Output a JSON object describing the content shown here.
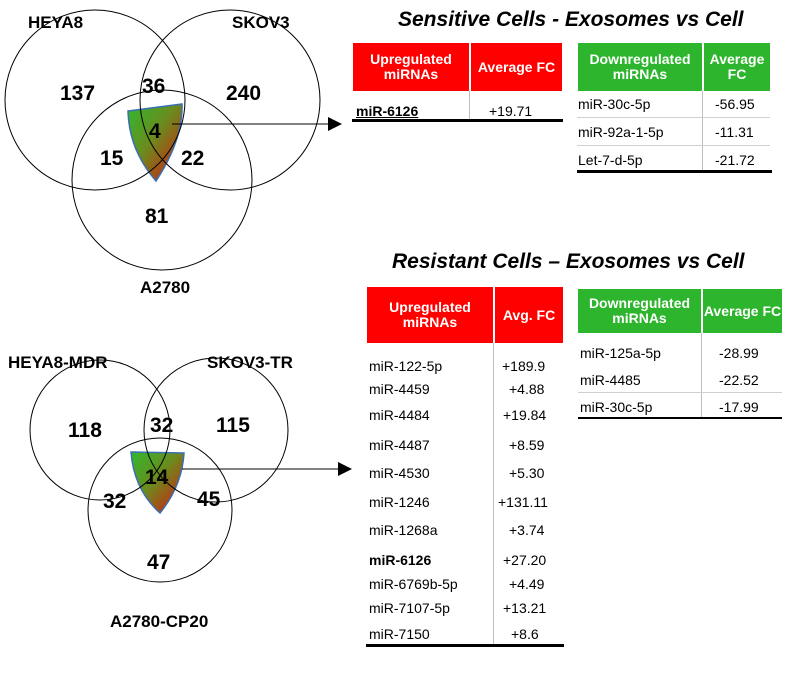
{
  "venn_top": {
    "labels": {
      "a": "HEYA8",
      "b": "SKOV3",
      "c": "A2780"
    },
    "counts": {
      "a_only": "137",
      "ab": "36",
      "b_only": "240",
      "ac": "15",
      "center": "4",
      "bc": "22",
      "c_only": "81"
    }
  },
  "venn_bottom": {
    "labels": {
      "a": "HEYA8-MDR",
      "b": "SKOV3-TR",
      "c": "A2780-CP20"
    },
    "counts": {
      "a_only": "118",
      "ab": "32",
      "b_only": "115",
      "ac": "32",
      "center": "14",
      "bc": "45",
      "c_only": "47"
    }
  },
  "sensitive": {
    "title": "Sensitive Cells -  Exosomes vs Cell",
    "up": {
      "h1": "Upregulated miRNAs",
      "h2": "Average FC",
      "rows": [
        {
          "name": "miR-6126",
          "fc": "+19.71"
        }
      ]
    },
    "down": {
      "h1": "Downregulated miRNAs",
      "h2": "Average FC",
      "rows": [
        {
          "name": "miR-30c-5p",
          "fc": "-56.95"
        },
        {
          "name": "miR-92a-1-5p",
          "fc": "-11.31"
        },
        {
          "name": "Let-7-d-5p",
          "fc": "-21.72"
        }
      ]
    }
  },
  "resistant": {
    "title": "Resistant Cells – Exosomes vs Cell",
    "up": {
      "h1": "Upregulated miRNAs",
      "h2": "Avg. FC",
      "rows": [
        {
          "name": "miR-122-5p",
          "fc": "+189.9"
        },
        {
          "name": "miR-4459",
          "fc": "+4.88"
        },
        {
          "name": "miR-4484",
          "fc": "+19.84"
        },
        {
          "name": "miR-4487",
          "fc": "+8.59"
        },
        {
          "name": "miR-4530",
          "fc": "+5.30"
        },
        {
          "name": "miR-1246",
          "fc": "+131.11"
        },
        {
          "name": "miR-1268a",
          "fc": "+3.74"
        },
        {
          "name": "miR-6126",
          "fc": "+27.20"
        },
        {
          "name": "miR-6769b-5p",
          "fc": "+4.49"
        },
        {
          "name": "miR-7107-5p",
          "fc": "+13.21"
        },
        {
          "name": "miR-7150",
          "fc": "+8.6"
        }
      ]
    },
    "down": {
      "h1": "Downregulated miRNAs",
      "h2": "Average FC",
      "rows": [
        {
          "name": "miR-125a-5p",
          "fc": "-28.99"
        },
        {
          "name": "miR-4485",
          "fc": "-22.52"
        },
        {
          "name": "miR-30c-5p",
          "fc": "-17.99"
        }
      ]
    }
  },
  "colors": {
    "up_header": "#ff0000",
    "down_header": "#2db52d",
    "overlap_red": "#e01010",
    "overlap_green": "#2fb82f"
  }
}
